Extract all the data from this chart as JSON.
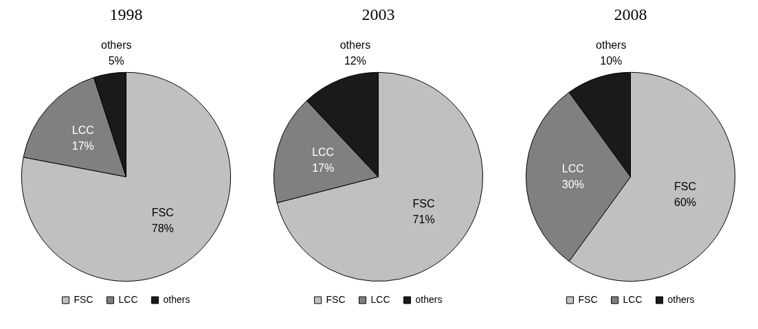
{
  "chart_data": [
    {
      "type": "pie",
      "title": "1998",
      "categories": [
        "FSC",
        "LCC",
        "others"
      ],
      "values": [
        78,
        17,
        5
      ],
      "colors": [
        "#c0c0c0",
        "#808080",
        "#1a1a1a"
      ],
      "value_labels": [
        "78%",
        "17%",
        "5%"
      ],
      "legend": "bottom"
    },
    {
      "type": "pie",
      "title": "2003",
      "categories": [
        "FSC",
        "LCC",
        "others"
      ],
      "values": [
        71,
        17,
        12
      ],
      "colors": [
        "#c0c0c0",
        "#808080",
        "#1a1a1a"
      ],
      "value_labels": [
        "71%",
        "17%",
        "12%"
      ],
      "legend": "bottom"
    },
    {
      "type": "pie",
      "title": "2008",
      "categories": [
        "FSC",
        "LCC",
        "others"
      ],
      "values": [
        60,
        30,
        10
      ],
      "colors": [
        "#c0c0c0",
        "#808080",
        "#1a1a1a"
      ],
      "value_labels": [
        "60%",
        "30%",
        "10%"
      ],
      "legend": "bottom"
    }
  ]
}
